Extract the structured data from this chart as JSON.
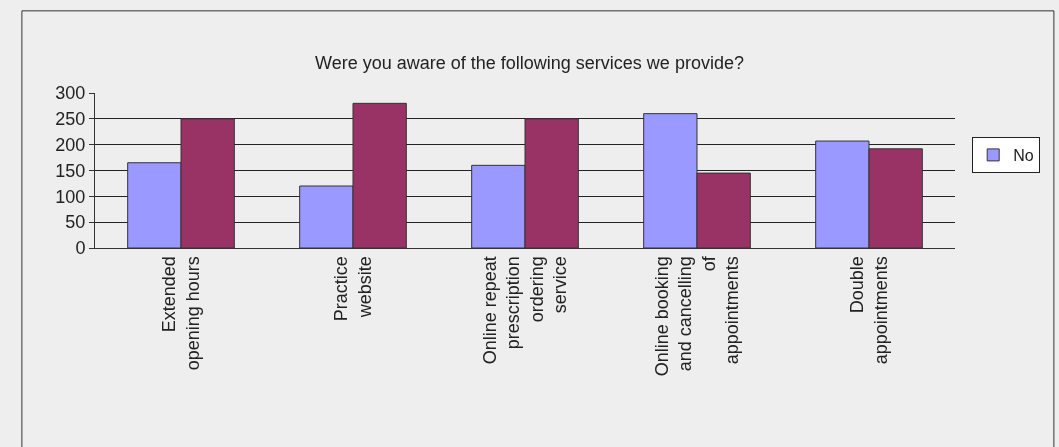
{
  "chart_data": {
    "type": "bar",
    "title": "Were you aware of the following services we provide?",
    "categories": [
      "Extended\nopening hours",
      "Practice\nwebsite",
      "Online repeat\nprescription\nordering\nservice",
      "Online booking\nand cancelling\nof\nappointments",
      "Double\nappointments"
    ],
    "series": [
      {
        "name": "No",
        "color": "#9999ff",
        "values": [
          165,
          120,
          160,
          260,
          207
        ]
      },
      {
        "color": "#993366",
        "values": [
          250,
          280,
          250,
          145,
          192
        ]
      }
    ],
    "ylim": [
      0,
      300
    ],
    "yticks": [
      0,
      50,
      100,
      150,
      200,
      250,
      300
    ],
    "grid": "y",
    "legend": "right"
  }
}
